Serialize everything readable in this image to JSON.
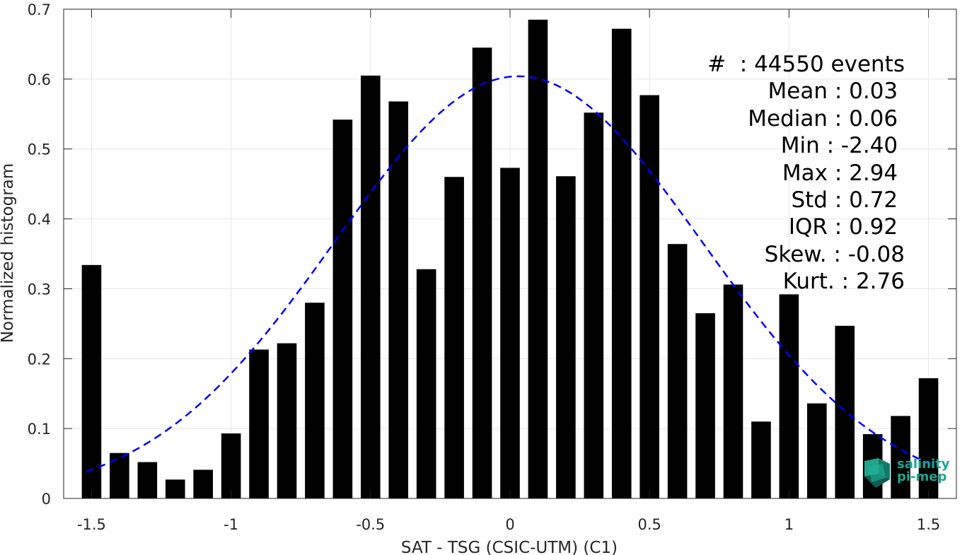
{
  "chart_data": {
    "type": "bar",
    "xlabel": "SAT - TSG (CSIC-UTM) (C1)",
    "ylabel": "Normalized histogram",
    "xlim": [
      -1.6,
      1.6
    ],
    "ylim": [
      0,
      0.7
    ],
    "x_ticks": [
      -1.5,
      -1,
      -0.5,
      0,
      0.5,
      1,
      1.5
    ],
    "x_tick_labels": [
      "-1.5",
      "-1",
      "-0.5",
      "0",
      "0.5",
      "1",
      "1.5"
    ],
    "y_ticks": [
      0,
      0.1,
      0.2,
      0.3,
      0.4,
      0.5,
      0.6,
      0.7
    ],
    "y_tick_labels": [
      "0",
      "0.1",
      "0.2",
      "0.3",
      "0.4",
      "0.5",
      "0.6",
      "0.7"
    ],
    "grid": true,
    "bar_width": 0.07,
    "x": [
      -1.5,
      -1.4,
      -1.3,
      -1.2,
      -1.1,
      -1.0,
      -0.9,
      -0.8,
      -0.7,
      -0.6,
      -0.5,
      -0.4,
      -0.3,
      -0.2,
      -0.1,
      0.0,
      0.1,
      0.2,
      0.3,
      0.4,
      0.5,
      0.6,
      0.7,
      0.8,
      0.9,
      1.0,
      1.1,
      1.2,
      1.3,
      1.4,
      1.5
    ],
    "values": [
      0.334,
      0.065,
      0.052,
      0.027,
      0.041,
      0.093,
      0.213,
      0.222,
      0.28,
      0.542,
      0.605,
      0.568,
      0.328,
      0.46,
      0.645,
      0.473,
      0.685,
      0.461,
      0.552,
      0.672,
      0.577,
      0.364,
      0.265,
      0.306,
      0.11,
      0.292,
      0.136,
      0.247,
      0.092,
      0.118,
      0.172
    ],
    "bar_color": "#000000",
    "fit_curve": {
      "style": "dashed",
      "color": "#0000ff",
      "mean": 0.03,
      "std": 0.66,
      "peak": 0.604,
      "x_range": [
        -1.52,
        1.52
      ]
    },
    "stats": [
      "#  : 44550 events",
      "Mean : 0.03 ",
      "Median : 0.06 ",
      "Min : -2.40 ",
      "Max : 2.94 ",
      "Std : 0.72 ",
      "IQR : 0.92 ",
      "Skew. : -0.08",
      "Kurt. : 2.76"
    ]
  },
  "logo": {
    "line1": "salinity",
    "line2": "pi-mep",
    "color": "#19a58f"
  }
}
